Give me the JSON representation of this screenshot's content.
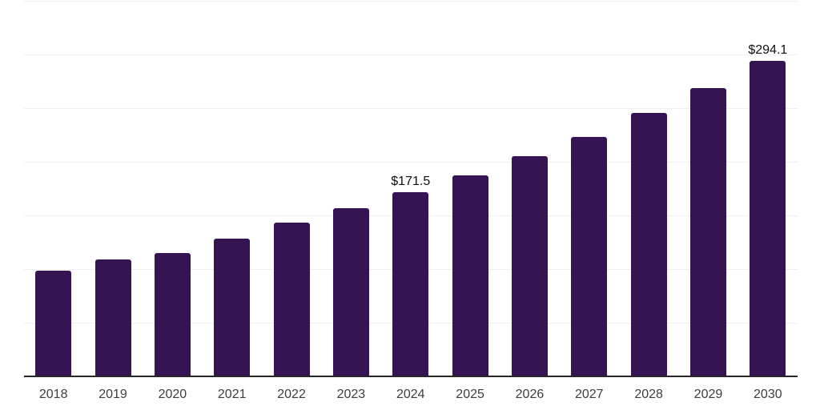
{
  "chart_data": {
    "type": "bar",
    "title": "",
    "xlabel": "",
    "ylabel": "",
    "categories": [
      "2018",
      "2019",
      "2020",
      "2021",
      "2022",
      "2023",
      "2024",
      "2025",
      "2026",
      "2027",
      "2028",
      "2029",
      "2030"
    ],
    "values": [
      98.4,
      108.6,
      114.9,
      128.0,
      143.0,
      156.7,
      171.5,
      187.2,
      205.2,
      223.5,
      245.6,
      268.9,
      294.1
    ],
    "data_labels": [
      {
        "category": "2024",
        "text": "$171.5"
      },
      {
        "category": "2030",
        "text": "$294.1"
      }
    ],
    "ylim": [
      0,
      350
    ],
    "gridline_step": 50,
    "grid": "horizontal",
    "legend": "none",
    "y_axis_ticks_visible": false,
    "currency_prefix": "$"
  },
  "style": {
    "bar_color": "#361453",
    "gridline_color": "#f0f0f0",
    "axis_line_color": "#262626",
    "data_label_color": "#111111",
    "tick_label_color": "#3d3d3d",
    "background_color": "#ffffff"
  }
}
